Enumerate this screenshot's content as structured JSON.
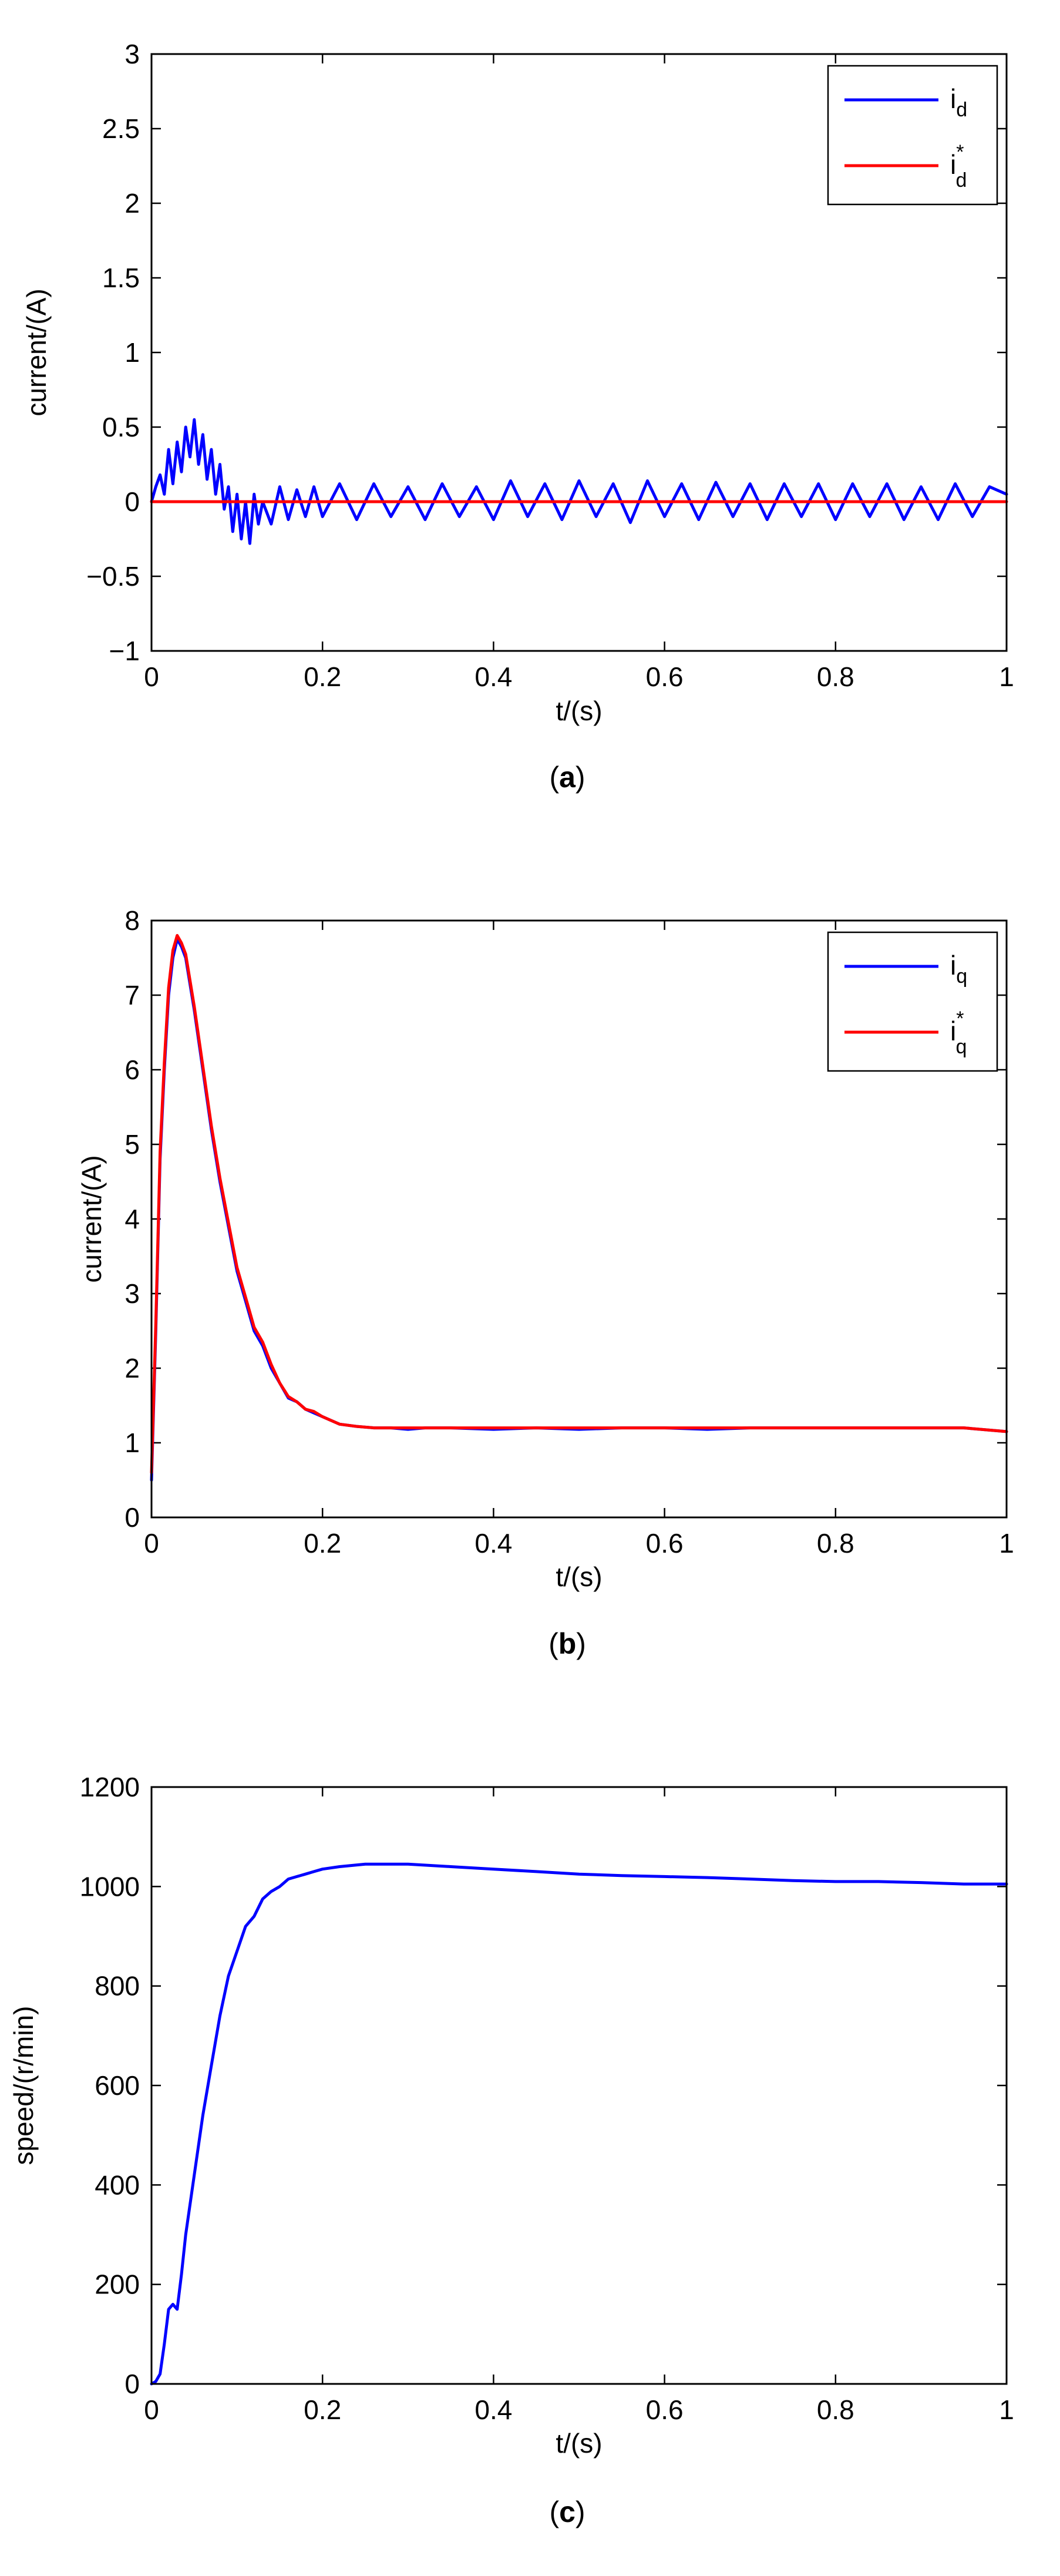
{
  "colors": {
    "blue": "#0000ff",
    "red": "#ff0000",
    "axis": "#000000"
  },
  "chart_data": [
    {
      "id": "a",
      "type": "line",
      "caption": "a",
      "xlabel": "t/(s)",
      "ylabel": "current/(A)",
      "xlim": [
        0,
        1
      ],
      "ylim": [
        -1,
        3
      ],
      "xticks": [
        "0",
        "0.2",
        "0.4",
        "0.6",
        "0.8",
        "1"
      ],
      "yticks": [
        "−1",
        "−0.5",
        "0",
        "0.5",
        "1",
        "1.5",
        "2",
        "2.5",
        "3"
      ],
      "legend_position": "top-right",
      "series": [
        {
          "name": "i_d",
          "label_main": "i",
          "label_sub": "d",
          "label_sup": "",
          "color": "#0000ff",
          "x": [
            0,
            0.005,
            0.01,
            0.015,
            0.02,
            0.025,
            0.03,
            0.035,
            0.04,
            0.045,
            0.05,
            0.055,
            0.06,
            0.065,
            0.07,
            0.075,
            0.08,
            0.085,
            0.09,
            0.095,
            0.1,
            0.105,
            0.11,
            0.115,
            0.12,
            0.125,
            0.13,
            0.14,
            0.15,
            0.16,
            0.17,
            0.18,
            0.19,
            0.2,
            0.22,
            0.24,
            0.26,
            0.28,
            0.3,
            0.32,
            0.34,
            0.36,
            0.38,
            0.4,
            0.42,
            0.44,
            0.46,
            0.48,
            0.5,
            0.52,
            0.54,
            0.56,
            0.58,
            0.6,
            0.62,
            0.64,
            0.66,
            0.68,
            0.7,
            0.72,
            0.74,
            0.76,
            0.78,
            0.8,
            0.82,
            0.84,
            0.86,
            0.88,
            0.9,
            0.92,
            0.94,
            0.96,
            0.98,
            1.0
          ],
          "values": [
            0.0,
            0.1,
            0.18,
            0.05,
            0.35,
            0.12,
            0.4,
            0.2,
            0.5,
            0.3,
            0.55,
            0.25,
            0.45,
            0.15,
            0.35,
            0.05,
            0.25,
            -0.05,
            0.1,
            -0.2,
            0.05,
            -0.25,
            0.0,
            -0.28,
            0.05,
            -0.15,
            0.0,
            -0.15,
            0.1,
            -0.12,
            0.08,
            -0.1,
            0.1,
            -0.1,
            0.12,
            -0.12,
            0.12,
            -0.1,
            0.1,
            -0.12,
            0.12,
            -0.1,
            0.1,
            -0.12,
            0.14,
            -0.1,
            0.12,
            -0.12,
            0.14,
            -0.1,
            0.12,
            -0.14,
            0.14,
            -0.1,
            0.12,
            -0.12,
            0.13,
            -0.1,
            0.12,
            -0.12,
            0.12,
            -0.1,
            0.12,
            -0.12,
            0.12,
            -0.1,
            0.12,
            -0.12,
            0.1,
            -0.12,
            0.12,
            -0.1,
            0.1,
            0.05
          ]
        },
        {
          "name": "i_d*",
          "label_main": "i",
          "label_sub": "d",
          "label_sup": "*",
          "color": "#ff0000",
          "x": [
            0,
            1
          ],
          "values": [
            0,
            0
          ]
        }
      ]
    },
    {
      "id": "b",
      "type": "line",
      "caption": "b",
      "xlabel": "t/(s)",
      "ylabel": "current/(A)",
      "xlim": [
        0,
        1
      ],
      "ylim": [
        0,
        8
      ],
      "xticks": [
        "0",
        "0.2",
        "0.4",
        "0.6",
        "0.8",
        "1"
      ],
      "yticks": [
        "0",
        "1",
        "2",
        "3",
        "4",
        "5",
        "6",
        "7",
        "8"
      ],
      "legend_position": "top-right",
      "series": [
        {
          "name": "i_q",
          "label_main": "i",
          "label_sub": "q",
          "label_sup": "",
          "color": "#0000ff",
          "x": [
            0,
            0.005,
            0.01,
            0.015,
            0.02,
            0.025,
            0.03,
            0.035,
            0.04,
            0.05,
            0.06,
            0.07,
            0.08,
            0.09,
            0.1,
            0.11,
            0.12,
            0.13,
            0.14,
            0.15,
            0.16,
            0.17,
            0.18,
            0.19,
            0.2,
            0.22,
            0.24,
            0.26,
            0.28,
            0.3,
            0.32,
            0.35,
            0.4,
            0.45,
            0.5,
            0.55,
            0.6,
            0.65,
            0.7,
            0.75,
            0.8,
            0.85,
            0.9,
            0.95,
            1.0
          ],
          "values": [
            0.5,
            2.5,
            4.8,
            6.0,
            7.0,
            7.5,
            7.75,
            7.65,
            7.5,
            6.8,
            6.0,
            5.2,
            4.5,
            3.9,
            3.3,
            2.9,
            2.5,
            2.3,
            2.0,
            1.8,
            1.6,
            1.55,
            1.45,
            1.4,
            1.35,
            1.25,
            1.22,
            1.2,
            1.2,
            1.18,
            1.2,
            1.2,
            1.18,
            1.2,
            1.18,
            1.2,
            1.2,
            1.18,
            1.2,
            1.2,
            1.2,
            1.2,
            1.2,
            1.2,
            1.15
          ]
        },
        {
          "name": "i_q*",
          "label_main": "i",
          "label_sub": "q",
          "label_sup": "*",
          "color": "#ff0000",
          "x": [
            0,
            0.005,
            0.01,
            0.015,
            0.02,
            0.025,
            0.03,
            0.035,
            0.04,
            0.05,
            0.06,
            0.07,
            0.08,
            0.09,
            0.1,
            0.11,
            0.12,
            0.13,
            0.14,
            0.15,
            0.16,
            0.17,
            0.18,
            0.19,
            0.2,
            0.22,
            0.24,
            0.26,
            0.28,
            0.3,
            0.32,
            0.35,
            0.4,
            0.45,
            0.5,
            0.55,
            0.6,
            0.65,
            0.7,
            0.75,
            0.8,
            0.85,
            0.9,
            0.95,
            1.0
          ],
          "values": [
            0.6,
            2.6,
            4.9,
            6.1,
            7.1,
            7.6,
            7.8,
            7.7,
            7.55,
            6.85,
            6.05,
            5.25,
            4.55,
            3.95,
            3.35,
            2.95,
            2.55,
            2.35,
            2.05,
            1.8,
            1.62,
            1.55,
            1.45,
            1.42,
            1.35,
            1.25,
            1.22,
            1.2,
            1.2,
            1.2,
            1.2,
            1.2,
            1.2,
            1.2,
            1.2,
            1.2,
            1.2,
            1.2,
            1.2,
            1.2,
            1.2,
            1.2,
            1.2,
            1.2,
            1.15
          ]
        }
      ]
    },
    {
      "id": "c",
      "type": "line",
      "caption": "c",
      "xlabel": "t/(s)",
      "ylabel": "speed/(r/min)",
      "xlim": [
        0,
        1
      ],
      "ylim": [
        0,
        1200
      ],
      "xticks": [
        "0",
        "0.2",
        "0.4",
        "0.6",
        "0.8",
        "1"
      ],
      "yticks": [
        "0",
        "200",
        "400",
        "600",
        "800",
        "1000",
        "1200"
      ],
      "legend_position": "none",
      "series": [
        {
          "name": "speed",
          "label_main": "",
          "label_sub": "",
          "label_sup": "",
          "color": "#0000ff",
          "x": [
            0,
            0.005,
            0.01,
            0.015,
            0.02,
            0.025,
            0.03,
            0.035,
            0.04,
            0.05,
            0.06,
            0.07,
            0.08,
            0.09,
            0.1,
            0.11,
            0.12,
            0.13,
            0.14,
            0.15,
            0.16,
            0.17,
            0.18,
            0.19,
            0.2,
            0.22,
            0.25,
            0.3,
            0.35,
            0.4,
            0.45,
            0.5,
            0.55,
            0.6,
            0.65,
            0.7,
            0.75,
            0.8,
            0.85,
            0.9,
            0.95,
            1.0
          ],
          "values": [
            0,
            5,
            20,
            80,
            150,
            160,
            150,
            220,
            300,
            420,
            540,
            640,
            740,
            820,
            870,
            920,
            940,
            975,
            990,
            1000,
            1015,
            1020,
            1025,
            1030,
            1035,
            1040,
            1045,
            1045,
            1040,
            1035,
            1030,
            1025,
            1022,
            1020,
            1018,
            1015,
            1012,
            1010,
            1010,
            1008,
            1005,
            1005
          ]
        }
      ]
    }
  ]
}
